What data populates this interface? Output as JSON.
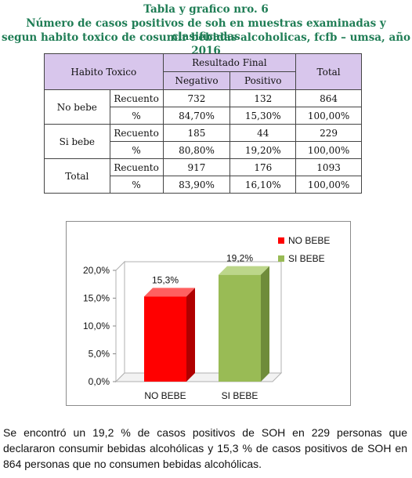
{
  "heading": {
    "line1": "Tabla y grafico nro. 6",
    "line2": "Número de casos positivos de soh en muestras examinadas y clasificadas",
    "line3": "segun habito toxico de cosumir bebidas alcoholicas, fcfb – umsa, año 2016"
  },
  "table": {
    "col_habito": "Habito Toxico",
    "col_resultado": "Resultado Final",
    "col_negativo": "Negativo",
    "col_positivo": "Positivo",
    "col_total": "Total",
    "groups": [
      {
        "label": "No bebe",
        "rows": [
          {
            "measure": "Recuento",
            "negativo": "732",
            "positivo": "132",
            "total": "864"
          },
          {
            "measure": "%",
            "negativo": "84,70%",
            "positivo": "15,30%",
            "total": "100,00%"
          }
        ]
      },
      {
        "label": "Si bebe",
        "rows": [
          {
            "measure": "Recuento",
            "negativo": "185",
            "positivo": "44",
            "total": "229"
          },
          {
            "measure": "%",
            "negativo": "80,80%",
            "positivo": "19,20%",
            "total": "100,00%"
          }
        ]
      },
      {
        "label": "Total",
        "rows": [
          {
            "measure": "Recuento",
            "negativo": "917",
            "positivo": "176",
            "total": "1093"
          },
          {
            "measure": "%",
            "negativo": "83,90%",
            "positivo": "16,10%",
            "total": "100,00%"
          }
        ]
      }
    ]
  },
  "chart_data": {
    "type": "bar",
    "categories": [
      "NO BEBE",
      "SI BEBE"
    ],
    "values": [
      15.3,
      19.2
    ],
    "value_labels": [
      "15,3%",
      "19,2%"
    ],
    "ytick_labels": [
      "0,0%",
      "5,0%",
      "10,0%",
      "15,0%",
      "20,0%"
    ],
    "yticks": [
      0,
      5,
      10,
      15,
      20
    ],
    "ylim": [
      0,
      20
    ],
    "legend": [
      "NO BEBE",
      "SI BEBE"
    ],
    "legend_position": "top-right",
    "colors": [
      "#ff0000",
      "#99bb55"
    ],
    "three_d": true,
    "grid": false
  },
  "caption": "Se encontró un 19,2 % de casos positivos de SOH en 229 personas que declararon consumir bebidas alcohólicas y 15,3 % de casos positivos de SOH en 864 personas que no consumen bebidas alcohólicas."
}
